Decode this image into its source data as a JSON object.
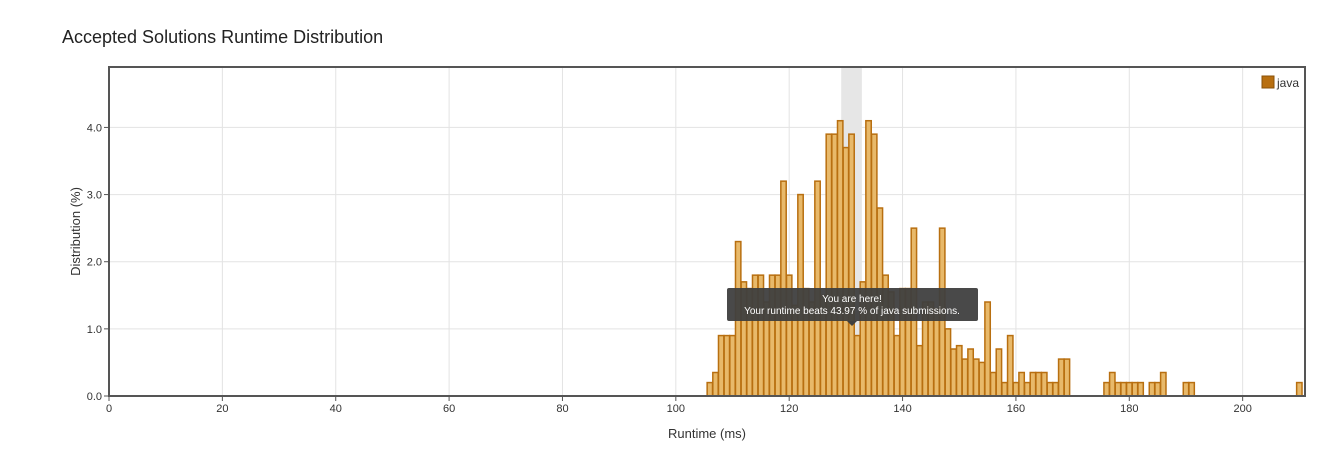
{
  "page": {
    "title": "Accepted Solutions Runtime Distribution"
  },
  "chart_data": {
    "type": "bar",
    "title": "Accepted Solutions Runtime Distribution",
    "xlabel": "Runtime (ms)",
    "ylabel": "Distribution (%)",
    "xlim": [
      0,
      211
    ],
    "ylim": [
      0,
      4.9
    ],
    "xticks": [
      0,
      20,
      40,
      60,
      80,
      100,
      120,
      140,
      160,
      180,
      200
    ],
    "yticks": [
      0,
      1,
      2,
      3,
      4
    ],
    "ytick_labels": [
      "0.0",
      "1.0",
      "2.0",
      "3.0",
      "4.0"
    ],
    "grid": true,
    "legend": {
      "position": "top-right",
      "label": "java"
    },
    "bar_color": "#e8b96a",
    "bar_edge_color": "#b86f10",
    "highlight": {
      "x": 131,
      "color": "#e6e6e6"
    },
    "tooltip": {
      "line1": "You are here!",
      "line2": "Your runtime beats 43.97 % of java submissions."
    },
    "series": [
      {
        "name": "java",
        "x": [
          106,
          107,
          108,
          109,
          110,
          111,
          112,
          113,
          114,
          115,
          116,
          117,
          118,
          119,
          120,
          121,
          122,
          123,
          124,
          125,
          126,
          127,
          128,
          129,
          130,
          131,
          132,
          133,
          134,
          135,
          136,
          137,
          138,
          139,
          140,
          141,
          142,
          143,
          144,
          145,
          146,
          147,
          148,
          149,
          150,
          151,
          152,
          153,
          154,
          155,
          156,
          157,
          158,
          159,
          160,
          161,
          162,
          163,
          164,
          165,
          166,
          167,
          168,
          169,
          176,
          177,
          178,
          179,
          180,
          181,
          182,
          184,
          185,
          186,
          190,
          191,
          210
        ],
        "y": [
          0.2,
          0.35,
          0.9,
          0.9,
          0.9,
          2.3,
          1.7,
          1.6,
          1.8,
          1.8,
          1.4,
          1.8,
          1.8,
          3.2,
          1.8,
          1.35,
          3.0,
          1.6,
          1.4,
          3.2,
          1.5,
          3.9,
          3.9,
          4.1,
          3.7,
          3.9,
          0.9,
          1.7,
          4.1,
          3.9,
          2.8,
          1.8,
          1.55,
          0.9,
          1.6,
          1.6,
          2.5,
          0.75,
          1.4,
          1.4,
          1.3,
          2.5,
          1.0,
          0.7,
          0.75,
          0.55,
          0.7,
          0.55,
          0.5,
          1.4,
          0.35,
          0.7,
          0.2,
          0.9,
          0.2,
          0.35,
          0.2,
          0.35,
          0.35,
          0.35,
          0.2,
          0.2,
          0.55,
          0.55,
          0.2,
          0.35,
          0.2,
          0.2,
          0.2,
          0.2,
          0.2,
          0.2,
          0.2,
          0.35,
          0.2,
          0.2,
          0.2
        ]
      }
    ]
  }
}
